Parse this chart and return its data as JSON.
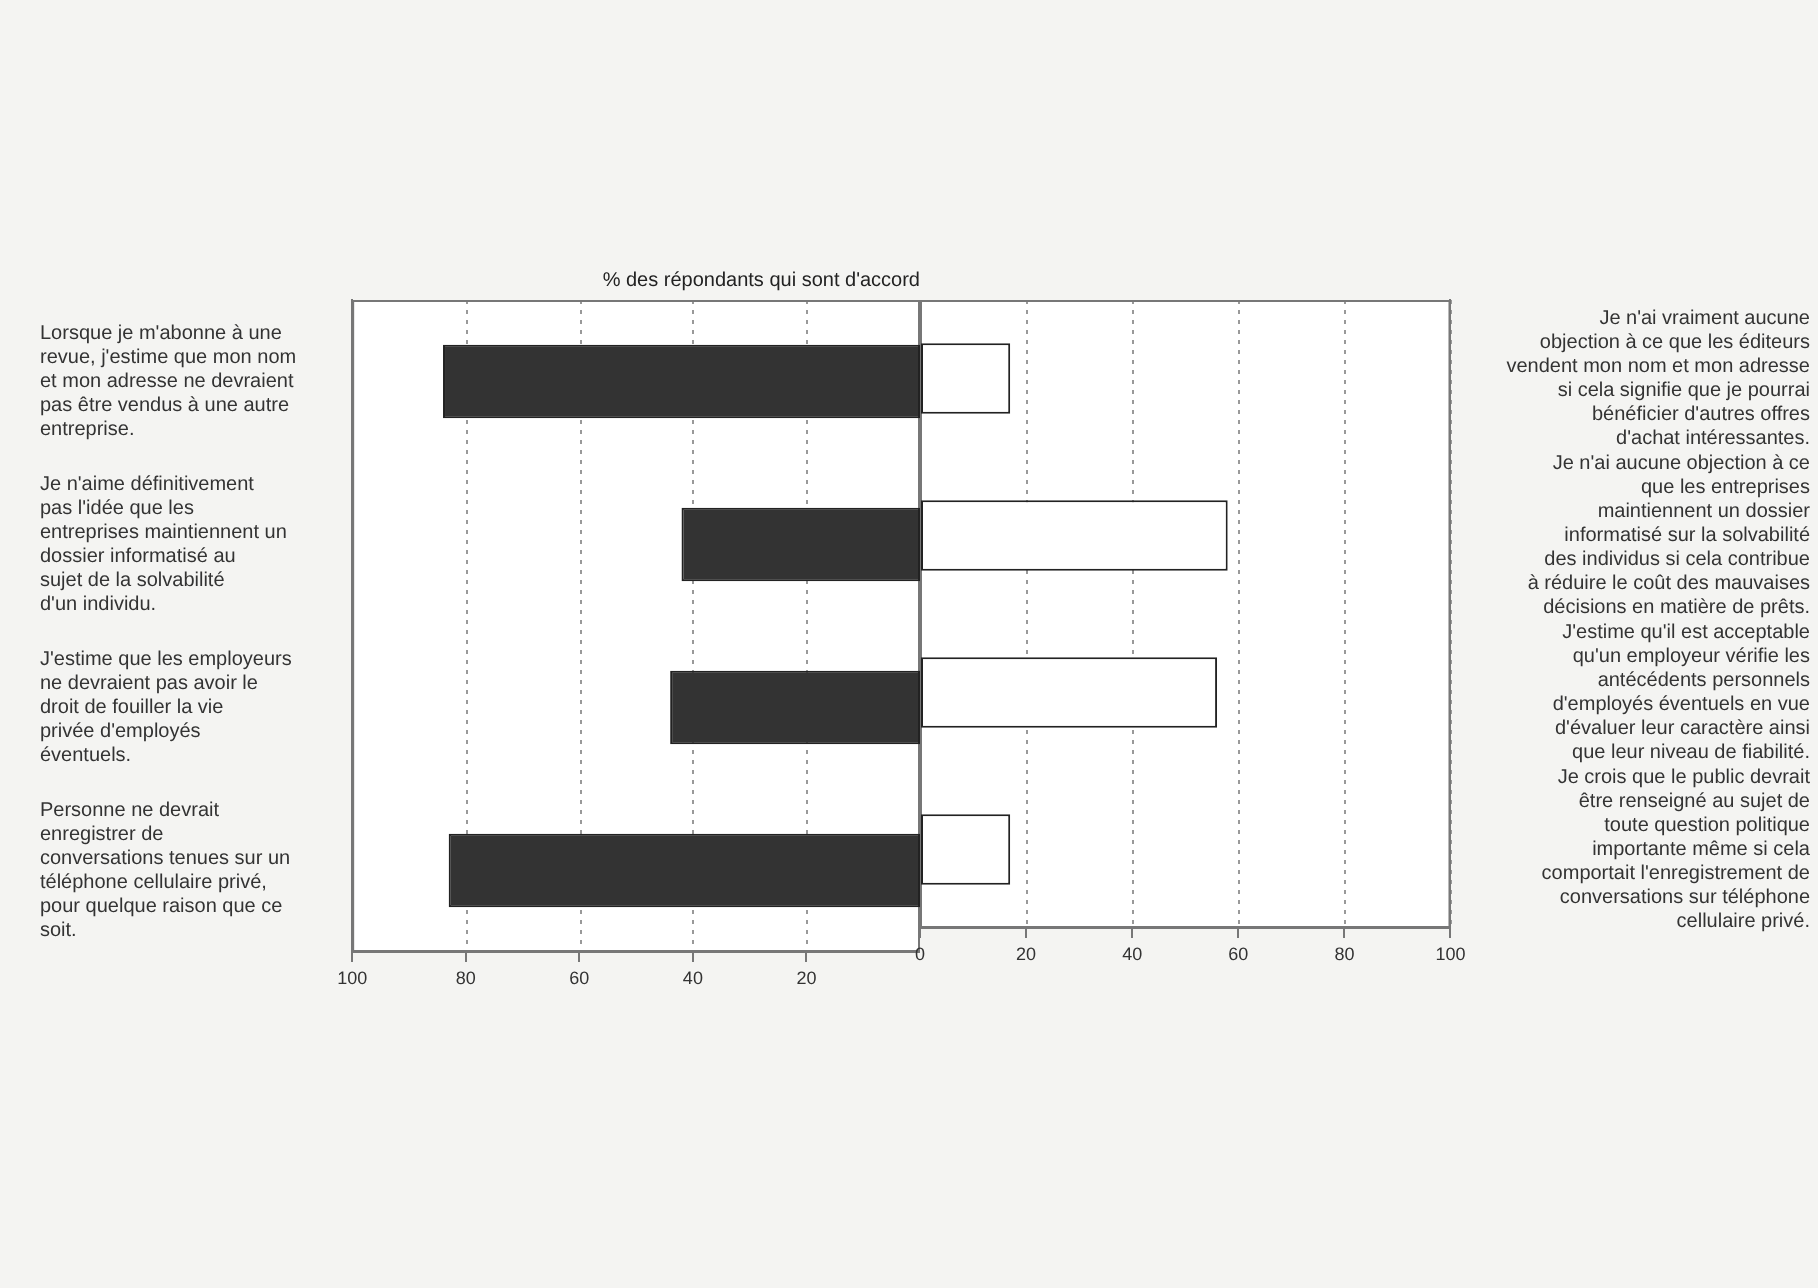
{
  "chart_data": [
    {
      "type": "bar",
      "orientation": "horizontal",
      "title": "% des répondants qui sont d'accord",
      "categories": [
        "Lorsque je m'abonne à une revue, j'estime que mon nom et mon adresse ne devraient pas être vendus à une autre entreprise.",
        "Je n'aime définitivement pas l'idée que les entreprises maintiennent un dossier informatisé au sujet de la solvabilité d'un individu.",
        "J'estime que les employeurs ne devraient pas avoir le droit de fouiller la vie privée d'employés éventuels.",
        "Personne ne devrait enregistrer de conversations tenues sur un téléphone cellulaire privé, pour quelque raison que ce soit."
      ],
      "values": [
        84,
        42,
        44,
        83
      ],
      "color": "#333333",
      "xlim": [
        100,
        0
      ],
      "xticks": [
        100,
        80,
        60,
        40,
        20
      ],
      "grid": "x",
      "line_style": "dotted"
    },
    {
      "type": "bar",
      "orientation": "horizontal",
      "categories": [
        "Je n'ai vraiment aucune objection à ce que les éditeurs vendent mon nom et mon adresse si cela signifie que je pourrai bénéficier d'autres offres d'achat intéressantes.",
        "Je n'ai aucune objection à ce que les entreprises maintiennent un dossier informatisé sur la solvabilité des individus si cela contribue à réduire le coût des mauvaises décisions en matière de prêts.",
        "J'estime qu'il est acceptable qu'un employeur vérifie les antécédents personnels d'employés éventuels en vue d'évaluer leur caractère ainsi que leur niveau de fiabilité.",
        "Je crois que le public devrait être renseigné au sujet de toute question politique importante même si cela comportait l'enregistrement de conversations sur téléphone cellulaire privé."
      ],
      "values": [
        17,
        58,
        56,
        17
      ],
      "color": "#ffffff",
      "xlim": [
        0,
        100
      ],
      "xticks": [
        0,
        20,
        40,
        60,
        80,
        100
      ],
      "grid": "x",
      "line_style": "dotted"
    }
  ]
}
